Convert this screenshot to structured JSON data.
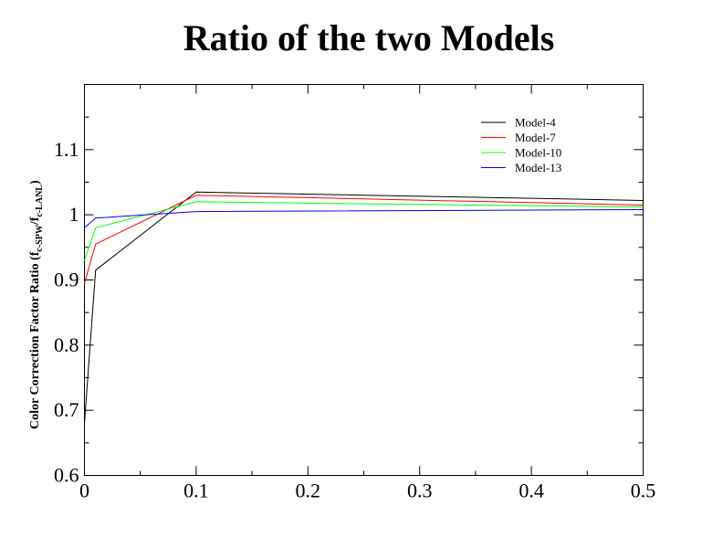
{
  "chart_data": {
    "type": "line",
    "title": "Ratio of the two Models",
    "xlabel": "",
    "ylabel": {
      "main": "Color Correction Factor Ratio (f",
      "sub1": "c-SPW",
      "mid": "/f",
      "sub2": "c-LANL",
      "end": ")"
    },
    "xlim": [
      0,
      0.5
    ],
    "ylim": [
      0.6,
      1.2
    ],
    "x_ticks": [
      0,
      0.1,
      0.2,
      0.3,
      0.4,
      0.5
    ],
    "x_tick_labels": [
      "0",
      "0.1",
      "0.2",
      "0.3",
      "0.4",
      "0.5"
    ],
    "y_ticks": [
      0.6,
      0.7,
      0.8,
      0.9,
      1.0,
      1.1
    ],
    "y_tick_labels": [
      "0.6",
      "0.7",
      "0.8",
      "0.9",
      "1",
      "1.1"
    ],
    "x_minor_step": 0.05,
    "y_minor_step": 0.05,
    "grid": false,
    "legend_position": "top-right",
    "series": [
      {
        "name": "Model-4",
        "color": "#000000",
        "x": [
          0,
          0.01,
          0.1,
          0.5
        ],
        "y": [
          0.68,
          0.915,
          1.035,
          1.022
        ]
      },
      {
        "name": "Model-7",
        "color": "#ff0000",
        "x": [
          0,
          0.01,
          0.1,
          0.5
        ],
        "y": [
          0.895,
          0.955,
          1.03,
          1.015
        ]
      },
      {
        "name": "Model-10",
        "color": "#00ff00",
        "x": [
          0,
          0.01,
          0.1,
          0.5
        ],
        "y": [
          0.93,
          0.98,
          1.02,
          1.012
        ]
      },
      {
        "name": "Model-13",
        "color": "#0000ff",
        "x": [
          0,
          0.01,
          0.1,
          0.5
        ],
        "y": [
          0.98,
          0.995,
          1.005,
          1.008
        ]
      }
    ]
  }
}
